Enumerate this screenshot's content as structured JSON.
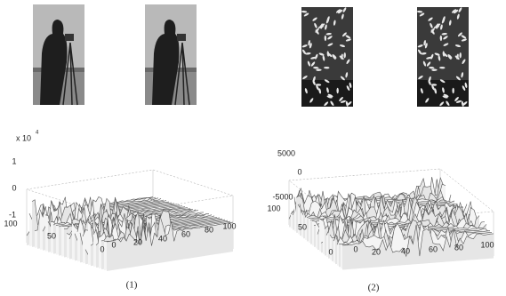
{
  "panels": [
    {
      "label": "(1)",
      "plot": {
        "z_scale": "x 10",
        "z_exponent": "4",
        "zticks": [
          "1",
          "0",
          "-1"
        ],
        "yticks": [
          "100",
          "50",
          "0"
        ],
        "xticks": [
          "0",
          "20",
          "40",
          "60",
          "80",
          "100"
        ]
      }
    },
    {
      "label": "(2)",
      "plot": {
        "zticks": [
          "5000",
          "0",
          "-5000"
        ],
        "yticks": [
          "100",
          "50",
          "0"
        ],
        "xticks": [
          "0",
          "20",
          "40",
          "60",
          "80",
          "100"
        ]
      }
    }
  ]
}
